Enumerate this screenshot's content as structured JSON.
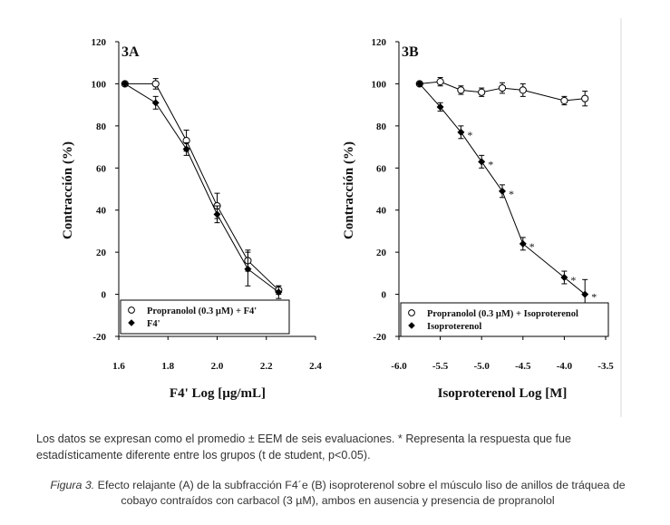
{
  "chart_data": [
    {
      "type": "line",
      "panel_label": "3A",
      "xlabel": "F4' Log [µg/mL]",
      "ylabel": "Contracción (%)",
      "xlim": [
        1.6,
        2.4
      ],
      "ylim": [
        -20,
        120
      ],
      "x_ticks": [
        "1.6",
        "1.8",
        "2.0",
        "2.2",
        "2.4"
      ],
      "y_ticks": [
        "-20",
        "0",
        "20",
        "40",
        "60",
        "80",
        "100",
        "120"
      ],
      "series": [
        {
          "name": "Propranolol (0.3 µM) + F4'",
          "marker": "open-circle",
          "x": [
            1.625,
            1.75,
            1.875,
            2.0,
            2.125,
            2.25
          ],
          "y": [
            100,
            100,
            73,
            42,
            16,
            2
          ],
          "err": [
            0,
            2.5,
            5,
            6,
            5,
            2
          ]
        },
        {
          "name": "F4'",
          "marker": "filled-diamond",
          "x": [
            1.625,
            1.75,
            1.875,
            2.0,
            2.125,
            2.25
          ],
          "y": [
            100,
            91,
            69,
            38,
            12,
            1
          ],
          "err": [
            0,
            3,
            3,
            4,
            8,
            3
          ]
        }
      ],
      "legend_position": "bottom-left"
    },
    {
      "type": "line",
      "panel_label": "3B",
      "xlabel": "Isoproterenol Log [M]",
      "ylabel": "Contracción (%)",
      "xlim": [
        -6.0,
        -3.5
      ],
      "ylim": [
        -20,
        120
      ],
      "x_ticks": [
        "-6.0",
        "-5.5",
        "-5.0",
        "-4.5",
        "-4.0",
        "-3.5"
      ],
      "y_ticks": [
        "-20",
        "0",
        "20",
        "40",
        "60",
        "80",
        "100",
        "120"
      ],
      "series": [
        {
          "name": "Propranolol (0.3 µM) + Isoproterenol",
          "marker": "open-circle",
          "x": [
            -5.75,
            -5.5,
            -5.25,
            -5.0,
            -4.75,
            -4.5,
            -4.0,
            -3.75
          ],
          "y": [
            100,
            101,
            97,
            96,
            98,
            97,
            92,
            93
          ],
          "err": [
            0,
            2,
            2,
            2,
            2.5,
            3,
            2,
            3.5
          ]
        },
        {
          "name": "Isoproterenol",
          "marker": "filled-diamond",
          "x": [
            -5.75,
            -5.5,
            -5.25,
            -5.0,
            -4.75,
            -4.5,
            -4.0,
            -3.75
          ],
          "y": [
            100,
            89,
            77,
            63,
            49,
            24,
            8,
            0
          ],
          "err": [
            0,
            2,
            3,
            3,
            3,
            3,
            3,
            7
          ],
          "significant": [
            false,
            false,
            true,
            true,
            true,
            true,
            true,
            true
          ]
        }
      ],
      "significance_marker": "*",
      "legend_position": "bottom-left"
    }
  ],
  "note": "Los datos se expresan como el promedio ± EEM de seis evaluaciones. * Representa la respuesta que fue estadísticamente diferente entre los grupos (t de student, p<0.05).",
  "caption": {
    "label": "Figura 3.",
    "text": " Efecto relajante (A) de la subfracción F4´e (B) isoproterenol sobre el músculo liso de anillos de tráquea de cobayo contraídos con carbacol (3 µM), ambos en ausencia y presencia de propranolol"
  }
}
